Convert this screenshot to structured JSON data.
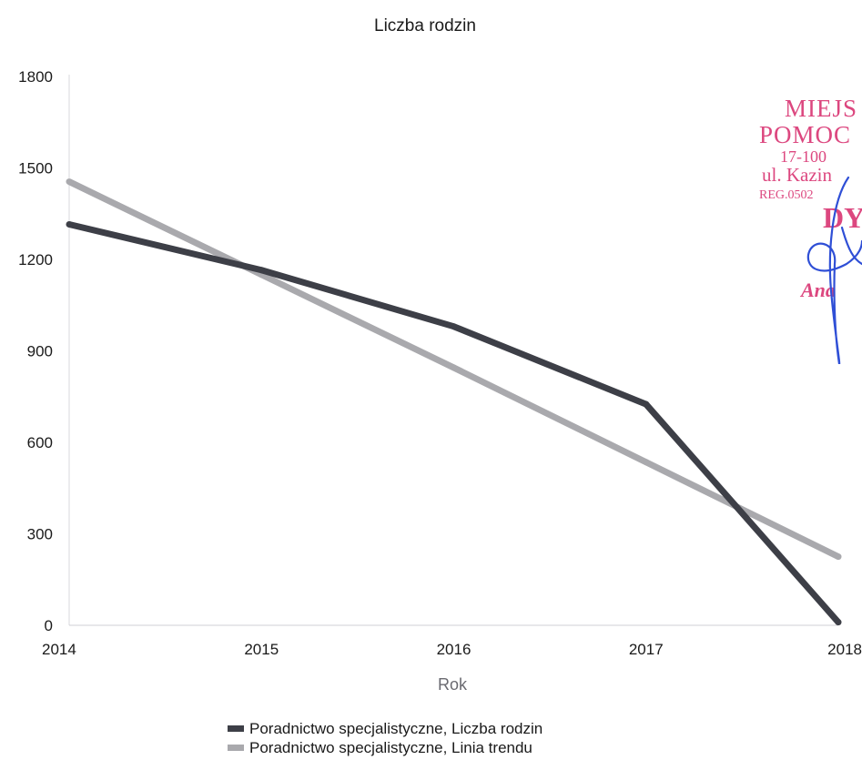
{
  "chart_data": {
    "type": "line",
    "title": "Liczba rodzin",
    "xlabel": "Rok",
    "ylabel": "",
    "x": [
      2014,
      2015,
      2016,
      2017,
      2018
    ],
    "ylim": [
      0,
      1800
    ],
    "yticks": [
      0,
      300,
      600,
      900,
      1200,
      1500,
      1800
    ],
    "grid": false,
    "legend_position": "bottom",
    "series": [
      {
        "name": "Poradnictwo specjalistyczne, Liczba rodzin",
        "values": [
          1315,
          1165,
          980,
          725,
          10
        ],
        "color": "#3d3f47"
      },
      {
        "name": "Poradnictwo specjalistyczne, Linia trendu",
        "values": [
          1455,
          1150,
          845,
          535,
          225
        ],
        "color": "#a9a9ad"
      }
    ]
  },
  "stamp": {
    "lines": [
      "MIEJS",
      "POMOC",
      "17-100",
      "ul. Kazin",
      "REG.0502",
      "DY",
      "Ana"
    ],
    "color": "#d93472",
    "signature_color": "#2f4fd6"
  }
}
